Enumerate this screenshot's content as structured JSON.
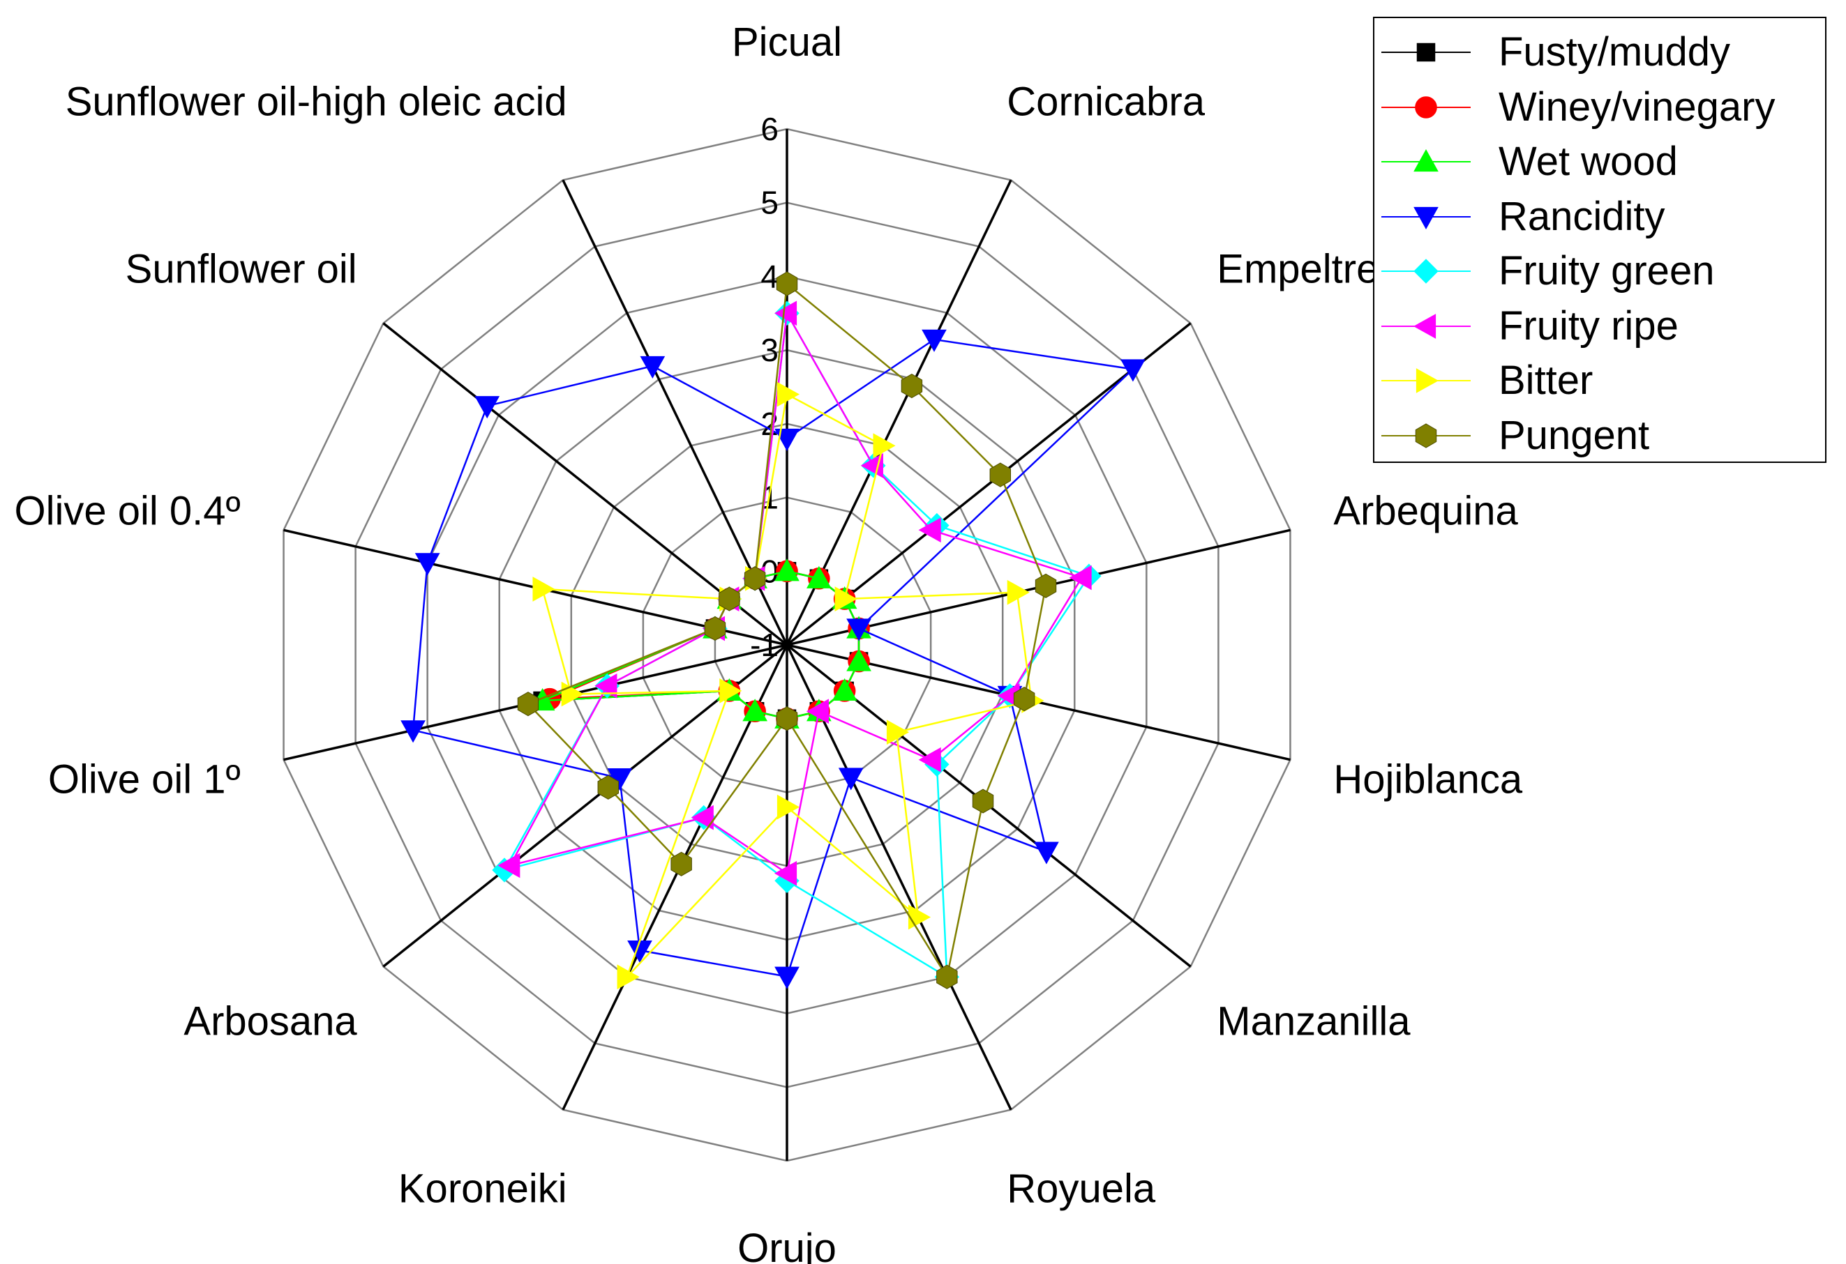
{
  "chart_data": {
    "type": "radar",
    "axes": [
      "Picual",
      "Cornicabra",
      "Empeltre",
      "Arbequina",
      "Hojiblanca",
      "Manzanilla",
      "Royuela",
      "Orujo",
      "Koroneiki",
      "Arbosana",
      "Olive oil 1º",
      "Olive oil 0.4º",
      "Sunflower oil",
      "Sunflower oil-high oleic acid"
    ],
    "range": [
      -1,
      6
    ],
    "ticks": [
      -1,
      0,
      1,
      2,
      3,
      4,
      5,
      6
    ],
    "tick_labels": [
      "-1",
      "0",
      "1",
      "2",
      "3",
      "4",
      "5",
      "6"
    ],
    "legend_position": "top-right",
    "series": [
      {
        "name": "Fusty/muddy",
        "color": "#000000",
        "marker": "square",
        "values": [
          0,
          0,
          0,
          0,
          0,
          0,
          0,
          0,
          0,
          0,
          2.4,
          0,
          0,
          0
        ]
      },
      {
        "name": "Winey/vinegary",
        "color": "#ff0000",
        "marker": "circle",
        "values": [
          0,
          0,
          0,
          0,
          0,
          0,
          0,
          0,
          0,
          0,
          2.3,
          0,
          0,
          0
        ]
      },
      {
        "name": "Wet wood",
        "color": "#00ff00",
        "marker": "triangle-up",
        "values": [
          0,
          0,
          0,
          0,
          0,
          0,
          0,
          0,
          0,
          0,
          2.4,
          0,
          0,
          0
        ]
      },
      {
        "name": "Rancidity",
        "color": "#0000ff",
        "marker": "triangle-down",
        "values": [
          1.8,
          3.6,
          5.0,
          0,
          2.1,
          3.5,
          1.0,
          3.5,
          3.6,
          1.9,
          4.2,
          4.0,
          4.2,
          3.2
        ]
      },
      {
        "name": "Fruity green",
        "color": "#00ffff",
        "marker": "diamond",
        "values": [
          3.5,
          1.7,
          1.6,
          3.2,
          2.1,
          1.6,
          4.0,
          2.2,
          1.6,
          3.9,
          1.5,
          0,
          0,
          0
        ]
      },
      {
        "name": "Fruity ripe",
        "color": "#ff00ff",
        "marker": "triangle-left",
        "values": [
          3.5,
          1.7,
          1.5,
          3.1,
          2.1,
          1.5,
          0,
          2.1,
          1.6,
          3.8,
          1.5,
          0,
          0,
          0
        ]
      },
      {
        "name": "Bitter",
        "color": "#ffff00",
        "marker": "triangle-right",
        "values": [
          2.4,
          2.0,
          0,
          2.2,
          2.4,
          0.9,
          3.1,
          1.2,
          4.0,
          0,
          2.0,
          2.4,
          0,
          0
        ]
      },
      {
        "name": "Pungent",
        "color": "#808000",
        "marker": "hexagon",
        "values": [
          3.9,
          2.9,
          2.7,
          2.6,
          2.3,
          2.4,
          4.0,
          0,
          2.3,
          2.1,
          2.6,
          0,
          0,
          0
        ]
      }
    ]
  }
}
